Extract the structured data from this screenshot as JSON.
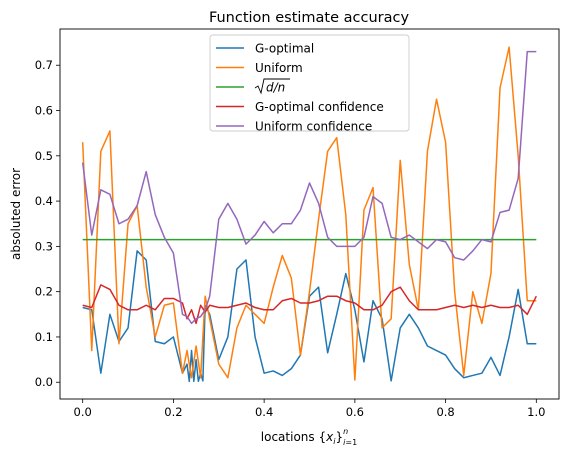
{
  "chart_data": {
    "type": "line",
    "title": "Function estimate accuracy",
    "xlabel_prefix": "locations ",
    "xlabel_math": "{x_i}_{i=1}^n",
    "ylabel": "absoluted error",
    "xlim": [
      -0.05,
      1.05
    ],
    "ylim": [
      -0.037,
      0.78
    ],
    "x_ticks": [
      0.0,
      0.2,
      0.4,
      0.6,
      0.8,
      1.0
    ],
    "x_tick_labels": [
      "0.0",
      "0.2",
      "0.4",
      "0.6",
      "0.8",
      "1.0"
    ],
    "y_ticks": [
      0.0,
      0.1,
      0.2,
      0.3,
      0.4,
      0.5,
      0.6,
      0.7
    ],
    "y_tick_labels": [
      "0.0",
      "0.1",
      "0.2",
      "0.3",
      "0.4",
      "0.5",
      "0.6",
      "0.7"
    ],
    "grid": false,
    "legend_placement": "top-center",
    "series": [
      {
        "name": "G-optimal",
        "color": "#1f77b4",
        "x": [
          0.0,
          0.02,
          0.04,
          0.06,
          0.08,
          0.1,
          0.12,
          0.14,
          0.16,
          0.18,
          0.2,
          0.22,
          0.23,
          0.235,
          0.24,
          0.245,
          0.25,
          0.255,
          0.26,
          0.265,
          0.27,
          0.28,
          0.3,
          0.32,
          0.34,
          0.36,
          0.38,
          0.4,
          0.42,
          0.44,
          0.46,
          0.48,
          0.5,
          0.52,
          0.54,
          0.56,
          0.58,
          0.6,
          0.62,
          0.64,
          0.66,
          0.68,
          0.7,
          0.72,
          0.74,
          0.76,
          0.78,
          0.8,
          0.82,
          0.84,
          0.86,
          0.88,
          0.9,
          0.92,
          0.94,
          0.96,
          0.98,
          1.0
        ],
        "values": [
          0.165,
          0.16,
          0.02,
          0.15,
          0.09,
          0.12,
          0.29,
          0.27,
          0.09,
          0.085,
          0.1,
          0.02,
          0.04,
          0.002,
          0.07,
          0.002,
          0.05,
          0.002,
          0.02,
          0.003,
          0.17,
          0.15,
          0.05,
          0.1,
          0.25,
          0.27,
          0.1,
          0.02,
          0.025,
          0.015,
          0.03,
          0.06,
          0.19,
          0.21,
          0.065,
          0.15,
          0.24,
          0.16,
          0.045,
          0.18,
          0.14,
          0.003,
          0.12,
          0.15,
          0.12,
          0.08,
          0.07,
          0.06,
          0.03,
          0.01,
          0.015,
          0.02,
          0.055,
          0.015,
          0.1,
          0.205,
          0.085,
          0.085
        ]
      },
      {
        "name": "Uniform",
        "color": "#ff7f0e",
        "x": [
          0.0,
          0.02,
          0.04,
          0.06,
          0.08,
          0.1,
          0.12,
          0.14,
          0.16,
          0.18,
          0.2,
          0.22,
          0.23,
          0.24,
          0.25,
          0.26,
          0.27,
          0.28,
          0.3,
          0.32,
          0.34,
          0.36,
          0.38,
          0.4,
          0.42,
          0.44,
          0.46,
          0.48,
          0.5,
          0.52,
          0.54,
          0.56,
          0.58,
          0.6,
          0.62,
          0.64,
          0.66,
          0.68,
          0.7,
          0.72,
          0.74,
          0.76,
          0.78,
          0.8,
          0.82,
          0.84,
          0.86,
          0.88,
          0.9,
          0.92,
          0.94,
          0.96,
          0.98,
          1.0
        ],
        "values": [
          0.53,
          0.07,
          0.51,
          0.555,
          0.085,
          0.35,
          0.39,
          0.21,
          0.1,
          0.17,
          0.175,
          0.02,
          0.07,
          0.01,
          0.08,
          0.01,
          0.19,
          0.14,
          0.04,
          0.01,
          0.12,
          0.17,
          0.15,
          0.13,
          0.21,
          0.28,
          0.23,
          0.06,
          0.2,
          0.36,
          0.51,
          0.54,
          0.37,
          0.005,
          0.38,
          0.43,
          0.12,
          0.14,
          0.49,
          0.26,
          0.16,
          0.51,
          0.625,
          0.53,
          0.2,
          0.015,
          0.2,
          0.13,
          0.24,
          0.65,
          0.74,
          0.5,
          0.18,
          0.18
        ]
      },
      {
        "name": "√(d/n)",
        "label_math": "\\sqrt{d/n}",
        "color": "#2ca02c",
        "x": [
          0.0,
          1.0
        ],
        "values": [
          0.315,
          0.315
        ]
      },
      {
        "name": "G-optimal confidence",
        "color": "#d62728",
        "x": [
          0.0,
          0.02,
          0.04,
          0.06,
          0.08,
          0.1,
          0.12,
          0.14,
          0.16,
          0.18,
          0.2,
          0.22,
          0.23,
          0.24,
          0.25,
          0.26,
          0.27,
          0.28,
          0.3,
          0.32,
          0.34,
          0.36,
          0.38,
          0.4,
          0.42,
          0.44,
          0.46,
          0.48,
          0.5,
          0.52,
          0.54,
          0.56,
          0.58,
          0.6,
          0.62,
          0.64,
          0.66,
          0.68,
          0.7,
          0.72,
          0.74,
          0.76,
          0.78,
          0.8,
          0.82,
          0.84,
          0.86,
          0.88,
          0.9,
          0.92,
          0.94,
          0.96,
          0.98,
          1.0
        ],
        "values": [
          0.17,
          0.165,
          0.215,
          0.205,
          0.17,
          0.16,
          0.16,
          0.17,
          0.16,
          0.185,
          0.185,
          0.175,
          0.14,
          0.16,
          0.13,
          0.17,
          0.155,
          0.17,
          0.165,
          0.165,
          0.17,
          0.175,
          0.165,
          0.16,
          0.16,
          0.18,
          0.185,
          0.175,
          0.175,
          0.18,
          0.19,
          0.19,
          0.18,
          0.175,
          0.16,
          0.16,
          0.17,
          0.2,
          0.21,
          0.18,
          0.16,
          0.16,
          0.16,
          0.165,
          0.17,
          0.165,
          0.17,
          0.165,
          0.17,
          0.165,
          0.165,
          0.17,
          0.15,
          0.19
        ]
      },
      {
        "name": "Uniform confidence",
        "color": "#9467bd",
        "x": [
          0.0,
          0.02,
          0.04,
          0.06,
          0.08,
          0.1,
          0.12,
          0.14,
          0.16,
          0.18,
          0.2,
          0.22,
          0.23,
          0.24,
          0.25,
          0.26,
          0.27,
          0.28,
          0.3,
          0.32,
          0.34,
          0.36,
          0.38,
          0.4,
          0.42,
          0.44,
          0.46,
          0.48,
          0.5,
          0.52,
          0.54,
          0.56,
          0.58,
          0.6,
          0.62,
          0.64,
          0.66,
          0.68,
          0.7,
          0.72,
          0.74,
          0.76,
          0.78,
          0.8,
          0.82,
          0.84,
          0.86,
          0.88,
          0.9,
          0.92,
          0.94,
          0.96,
          0.98,
          1.0
        ],
        "values": [
          0.485,
          0.325,
          0.425,
          0.415,
          0.35,
          0.36,
          0.39,
          0.465,
          0.37,
          0.32,
          0.285,
          0.15,
          0.145,
          0.13,
          0.14,
          0.145,
          0.16,
          0.19,
          0.36,
          0.395,
          0.36,
          0.305,
          0.325,
          0.355,
          0.33,
          0.35,
          0.35,
          0.38,
          0.44,
          0.395,
          0.32,
          0.3,
          0.3,
          0.3,
          0.32,
          0.41,
          0.395,
          0.32,
          0.315,
          0.325,
          0.31,
          0.295,
          0.315,
          0.31,
          0.275,
          0.27,
          0.29,
          0.315,
          0.31,
          0.375,
          0.38,
          0.45,
          0.73,
          0.73
        ]
      }
    ]
  }
}
